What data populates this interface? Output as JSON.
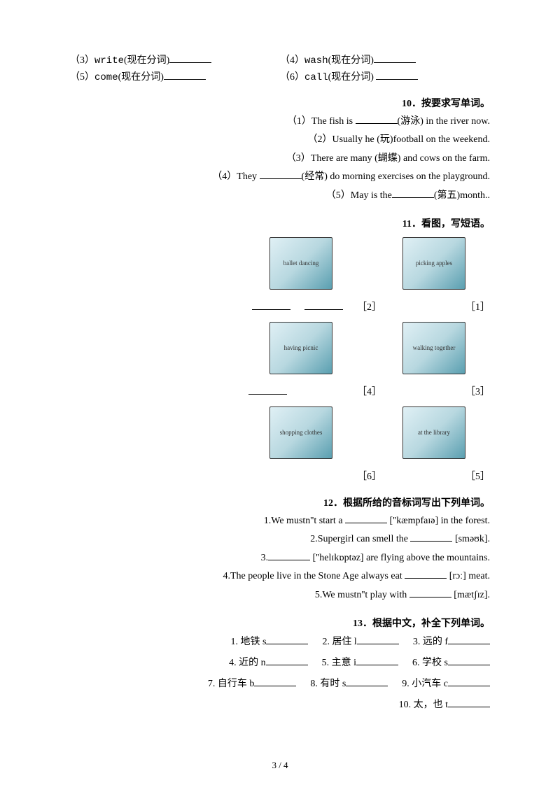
{
  "q9": {
    "items": [
      {
        "num": "（3）",
        "word": "write",
        "hint": "(现在分词)"
      },
      {
        "num": "（4）",
        "word": "wash",
        "hint": "(现在分词)"
      },
      {
        "num": "（5）",
        "word": "come",
        "hint": "(现在分词)"
      },
      {
        "num": "（6）",
        "word": "call",
        "hint": "(现在分词)"
      }
    ]
  },
  "q10": {
    "title": "10．按要求写单词。",
    "lines": [
      {
        "pre": "（1）The fish is ",
        "post": "(游泳) in the river now."
      },
      {
        "pre": "（2）Usually he (玩)football on the weekend.",
        "post": ""
      },
      {
        "pre": "（3）There are many (蝴蝶) and cows on the farm.",
        "post": ""
      },
      {
        "pre": "（4）They ",
        "post": "(经常) do morning exercises on the playground."
      },
      {
        "pre": "（5）May is the",
        "post": "(第五)month.."
      }
    ]
  },
  "q11": {
    "title": "11．看图，写短语。",
    "labels": [
      "［2］",
      "［1］",
      "［4］",
      "［3］",
      "［6］",
      "［5］"
    ],
    "pics": [
      "picking apples",
      "ballet dancing",
      "walking together",
      "having picnic",
      "at the library",
      "shopping clothes"
    ]
  },
  "q12": {
    "title": "12．根据所给的音标词写出下列单词。",
    "lines": [
      {
        "n": "1.",
        "pre": "We mustn''t start a ",
        "post": " [''kæmpfaɪə] in the forest."
      },
      {
        "n": "2.",
        "pre": "Supergirl can smell the ",
        "post": " [sməʊk]."
      },
      {
        "n": "3.",
        "pre": "",
        "post": " [''helɪkɒptəz] are flying above the mountains."
      },
      {
        "n": "4.",
        "pre": "The people live in the Stone Age always eat ",
        "post": " [rɔː] meat."
      },
      {
        "n": "5.",
        "pre": "We mustn''t play with ",
        "post": " [mætʃɪz]."
      }
    ]
  },
  "q13": {
    "title": "13．根据中文，补全下列单词。",
    "rows": [
      [
        {
          "n": "1.",
          "t": "地铁",
          "l": "s"
        },
        {
          "n": "2.",
          "t": "居住",
          "l": "l"
        },
        {
          "n": "3.",
          "t": "远的",
          "l": "f"
        }
      ],
      [
        {
          "n": "4.",
          "t": "近的",
          "l": "n"
        },
        {
          "n": "5.",
          "t": "主意",
          "l": "i"
        },
        {
          "n": "6.",
          "t": "学校",
          "l": "s"
        }
      ],
      [
        {
          "n": "7.",
          "t": "自行车",
          "l": "b"
        },
        {
          "n": "8.",
          "t": "有时",
          "l": "s"
        },
        {
          "n": "9.",
          "t": "小汽车",
          "l": "c"
        }
      ],
      [
        {
          "n": "10.",
          "t": "太，也",
          "l": "t"
        }
      ]
    ]
  },
  "footer": "3 / 4"
}
